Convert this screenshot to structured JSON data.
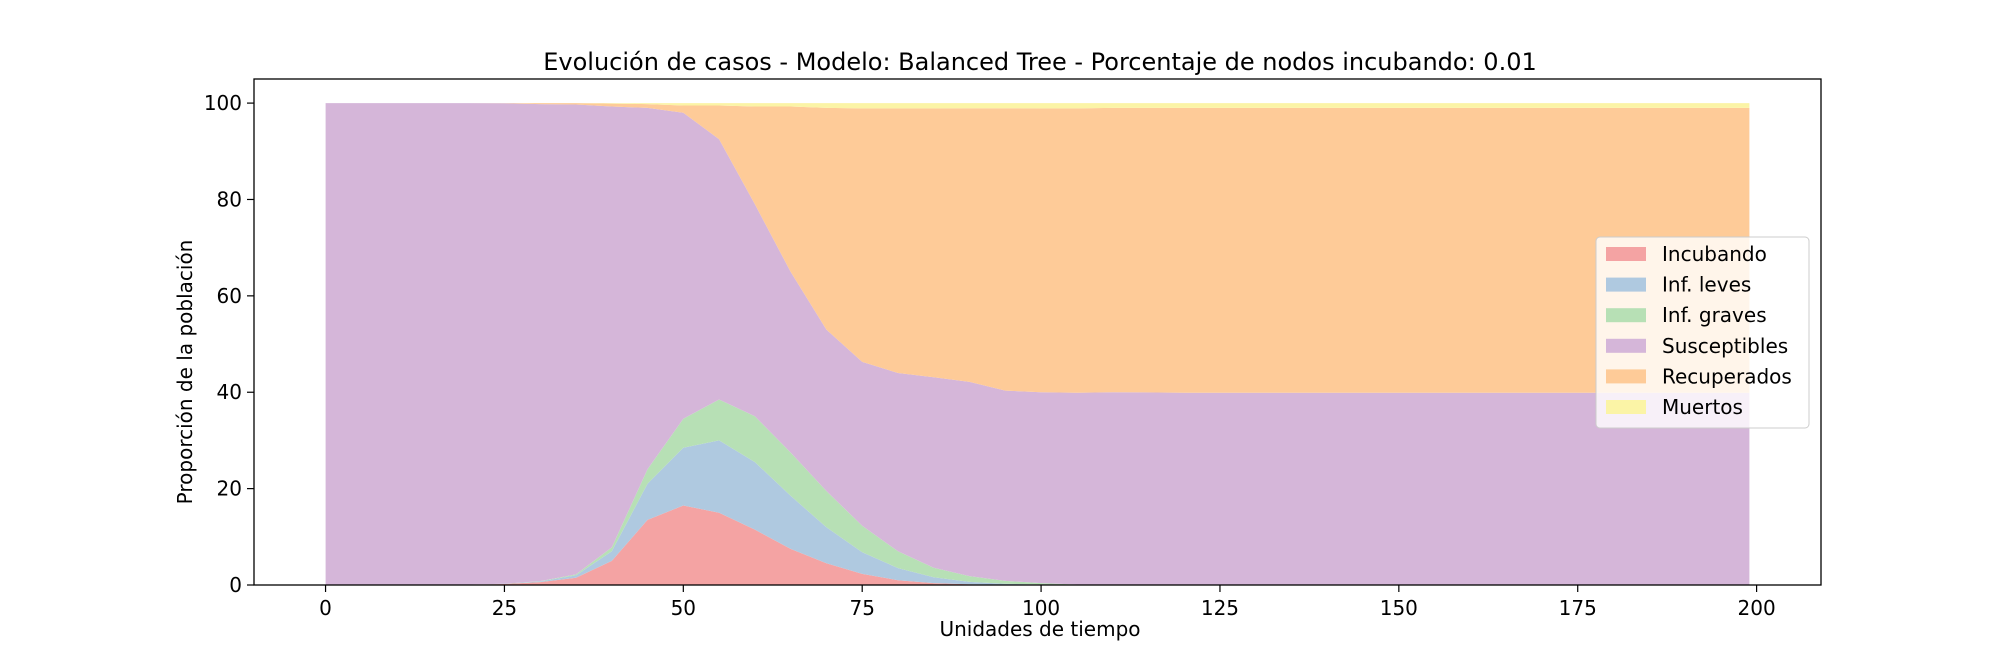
{
  "chart_data": {
    "type": "area",
    "stacked": true,
    "title": "Evolución de casos - Modelo: Balanced Tree - Porcentaje de nodos incubando: 0.01",
    "xlabel": "Unidades de tiempo",
    "ylabel": "Proporción de la población",
    "xlim": [
      -10,
      209
    ],
    "ylim": [
      0,
      105
    ],
    "xticks": [
      0,
      25,
      50,
      75,
      100,
      125,
      150,
      175,
      200
    ],
    "yticks": [
      0,
      20,
      40,
      60,
      80,
      100
    ],
    "grid": false,
    "legend_position": "center-right",
    "x": [
      0,
      10,
      20,
      25,
      30,
      35,
      40,
      45,
      50,
      55,
      60,
      65,
      70,
      75,
      80,
      85,
      90,
      95,
      100,
      105,
      110,
      120,
      150,
      175,
      199
    ],
    "series": [
      {
        "name": "Incubando",
        "color": "#f4a3a3",
        "values": [
          0.0,
          0.0,
          0.1,
          0.2,
          0.6,
          1.5,
          5.0,
          13.5,
          16.5,
          15.0,
          11.5,
          7.5,
          4.5,
          2.3,
          1.0,
          0.4,
          0.15,
          0.05,
          0.0,
          0.0,
          0.0,
          0.0,
          0.0,
          0.0,
          0.0
        ]
      },
      {
        "name": "Inf. leves",
        "color": "#afc9e0",
        "values": [
          0.0,
          0.0,
          0.0,
          0.05,
          0.15,
          0.5,
          2.0,
          7.5,
          12.0,
          15.0,
          14.0,
          11.0,
          7.5,
          4.5,
          2.5,
          1.2,
          0.5,
          0.2,
          0.1,
          0.0,
          0.0,
          0.0,
          0.0,
          0.0,
          0.0
        ]
      },
      {
        "name": "Inf. graves",
        "color": "#b7e0b5",
        "values": [
          0.0,
          0.0,
          0.0,
          0.0,
          0.05,
          0.2,
          0.8,
          3.0,
          6.0,
          8.5,
          9.5,
          9.0,
          7.5,
          5.5,
          3.5,
          2.0,
          1.2,
          0.6,
          0.3,
          0.1,
          0.0,
          0.0,
          0.0,
          0.0,
          0.0
        ]
      },
      {
        "name": "Susceptibles",
        "color": "#d5b6d9",
        "values": [
          100.0,
          100.0,
          99.9,
          99.7,
          99.0,
          97.5,
          91.5,
          75.0,
          63.5,
          54.0,
          44.0,
          37.5,
          33.5,
          34.0,
          37.0,
          39.5,
          40.3,
          39.5,
          39.6,
          39.8,
          40.0,
          39.9,
          39.9,
          39.9,
          39.9
        ]
      },
      {
        "name": "Recuperados",
        "color": "#fecb98",
        "values": [
          0.0,
          0.0,
          0.0,
          0.05,
          0.2,
          0.3,
          0.6,
          0.8,
          1.5,
          7.0,
          20.3,
          34.3,
          46.0,
          52.6,
          54.9,
          55.8,
          56.8,
          58.6,
          58.9,
          59.0,
          59.0,
          59.1,
          59.1,
          59.1,
          59.1
        ]
      },
      {
        "name": "Muertos",
        "color": "#fbf4a6",
        "values": [
          0.0,
          0.0,
          0.0,
          0.0,
          0.0,
          0.0,
          0.1,
          0.2,
          0.5,
          0.5,
          0.7,
          0.7,
          1.0,
          1.1,
          1.1,
          1.1,
          1.05,
          1.05,
          1.1,
          1.1,
          1.0,
          1.0,
          1.0,
          1.0,
          1.0
        ]
      }
    ]
  }
}
